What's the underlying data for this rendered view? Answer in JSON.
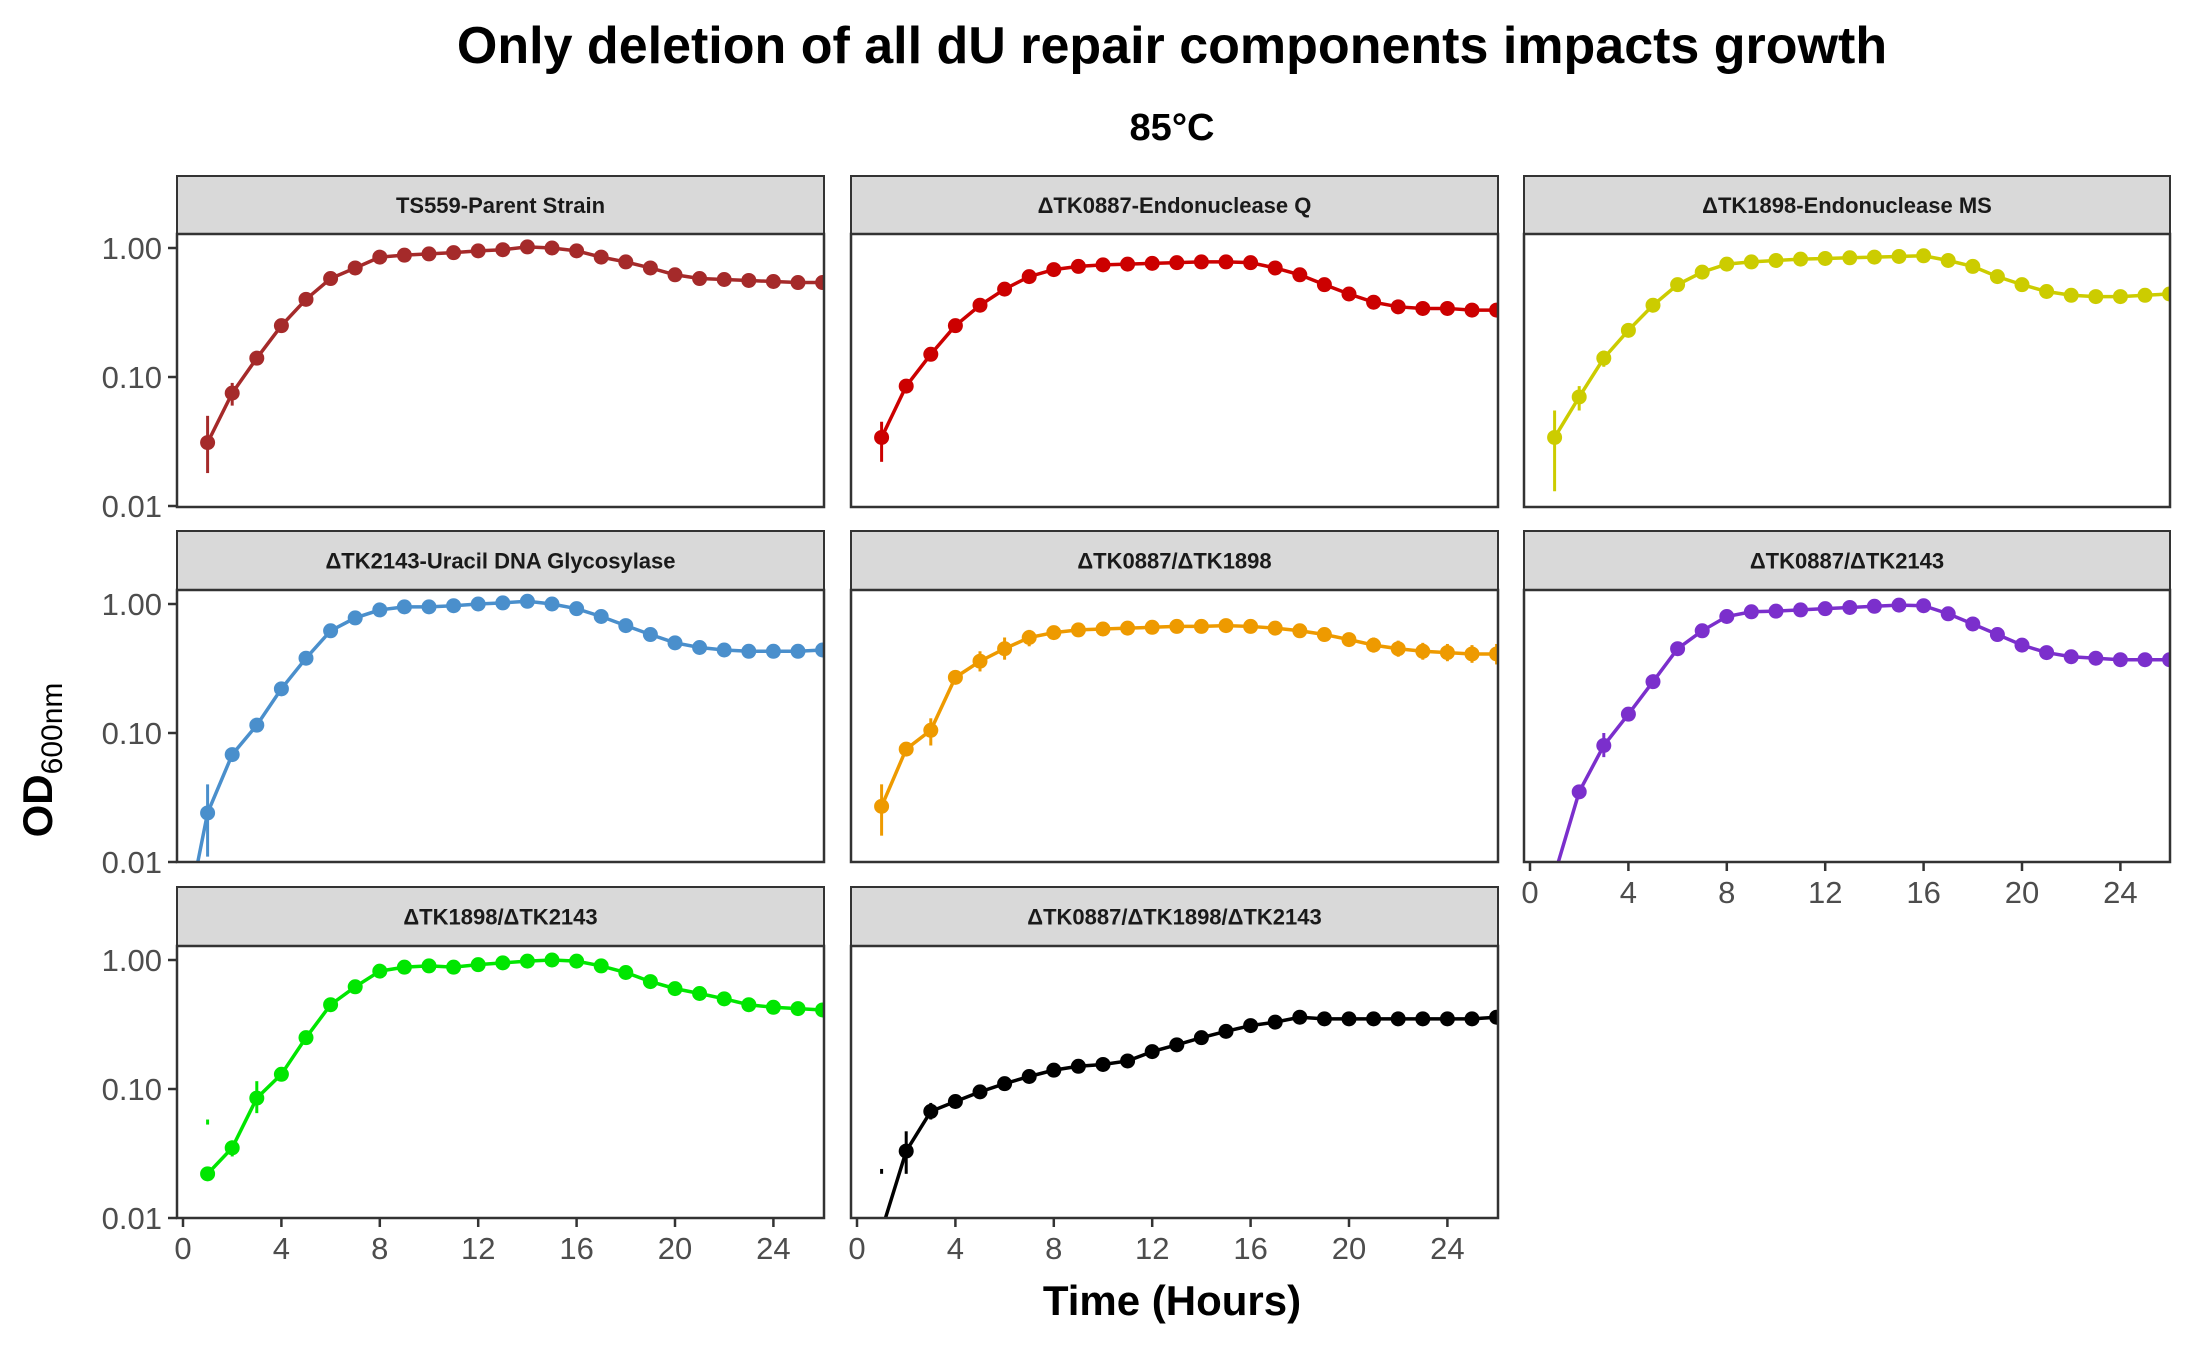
{
  "chart_data": {
    "type": "line",
    "title": "Only deletion of all dU repair components impacts growth",
    "subtitle": "85°C",
    "xlabel": "Time (Hours)",
    "ylabel_main": "OD",
    "ylabel_sub": "600nm",
    "xlim": [
      0,
      26.4
    ],
    "ylim": [
      0.01,
      3.5
    ],
    "y_scale": "log10",
    "x_ticks": [
      0,
      4,
      8,
      12,
      16,
      20,
      24
    ],
    "x_tick_labels": [
      "0",
      "4",
      "8",
      "12",
      "16",
      "20",
      "24"
    ],
    "y_ticks": [
      0.01,
      0.1,
      1.0
    ],
    "y_tick_labels": [
      "0.01",
      "0.10",
      "1.00"
    ],
    "grid": false,
    "legend": "none",
    "x": [
      1,
      2,
      3,
      4,
      5,
      6,
      7,
      8,
      9,
      10,
      11,
      12,
      13,
      14,
      15,
      16,
      17,
      18,
      19,
      20,
      21,
      22,
      23,
      24,
      25,
      26
    ],
    "series": [
      {
        "name": "TS559-Parent Strain",
        "color": "#a52a2a",
        "values": [
          0.031,
          0.075,
          0.14,
          0.25,
          0.4,
          0.58,
          0.7,
          0.85,
          0.88,
          0.9,
          0.92,
          0.95,
          0.97,
          1.02,
          1.0,
          0.95,
          0.85,
          0.78,
          0.7,
          0.62,
          0.58,
          0.57,
          0.56,
          0.55,
          0.54,
          0.54
        ],
        "err_lo": [
          0.018,
          0.06,
          0,
          0,
          0,
          0,
          0,
          0,
          0,
          0,
          0,
          0,
          0,
          0,
          0,
          0,
          0,
          0,
          0,
          0,
          0,
          0,
          0,
          0,
          0,
          0
        ],
        "err_hi": [
          0.05,
          0.09,
          0,
          0,
          0,
          0,
          0,
          0,
          0,
          0,
          0,
          0,
          0,
          0,
          0,
          0,
          0,
          0,
          0,
          0,
          0,
          0,
          0,
          0,
          0,
          0
        ]
      },
      {
        "name": "ΔTK0887-Endonuclease Q",
        "color": "#cc0000",
        "values": [
          0.034,
          0.085,
          0.15,
          0.25,
          0.36,
          0.48,
          0.6,
          0.68,
          0.72,
          0.74,
          0.75,
          0.76,
          0.77,
          0.78,
          0.78,
          0.77,
          0.7,
          0.62,
          0.52,
          0.44,
          0.38,
          0.35,
          0.34,
          0.34,
          0.33,
          0.33
        ],
        "err_lo": [
          0.022,
          0,
          0,
          0,
          0,
          0,
          0,
          0,
          0,
          0,
          0,
          0,
          0,
          0,
          0,
          0,
          0,
          0,
          0,
          0,
          0,
          0,
          0,
          0,
          0,
          0
        ],
        "err_hi": [
          0.045,
          0,
          0,
          0,
          0,
          0,
          0,
          0,
          0,
          0,
          0,
          0,
          0,
          0,
          0,
          0,
          0,
          0,
          0,
          0,
          0,
          0,
          0,
          0,
          0,
          0
        ]
      },
      {
        "name": "ΔTK1898-Endonuclease MS",
        "color": "#cccc00",
        "values": [
          0.034,
          0.07,
          0.14,
          0.23,
          0.36,
          0.52,
          0.65,
          0.75,
          0.78,
          0.8,
          0.82,
          0.83,
          0.84,
          0.85,
          0.86,
          0.87,
          0.8,
          0.72,
          0.6,
          0.52,
          0.46,
          0.43,
          0.42,
          0.42,
          0.43,
          0.44
        ],
        "err_lo": [
          0.013,
          0.055,
          0.12,
          0,
          0,
          0,
          0,
          0,
          0,
          0,
          0,
          0,
          0,
          0,
          0,
          0,
          0,
          0,
          0,
          0,
          0,
          0,
          0,
          0,
          0,
          0
        ],
        "err_hi": [
          0.055,
          0.085,
          0.16,
          0,
          0,
          0,
          0,
          0,
          0,
          0,
          0,
          0,
          0,
          0,
          0,
          0,
          0,
          0,
          0,
          0,
          0,
          0,
          0,
          0,
          0,
          0
        ]
      },
      {
        "name": "ΔTK2143-Uracil DNA Glycosylase",
        "color": "#4a8fcc",
        "values": [
          0.024,
          0.068,
          0.115,
          0.22,
          0.38,
          0.62,
          0.78,
          0.9,
          0.95,
          0.95,
          0.97,
          1.0,
          1.02,
          1.05,
          1.0,
          0.92,
          0.8,
          0.68,
          0.58,
          0.5,
          0.46,
          0.44,
          0.43,
          0.43,
          0.43,
          0.44
        ],
        "err_lo": [
          0.011,
          0,
          0,
          0,
          0,
          0,
          0,
          0,
          0,
          0,
          0,
          0,
          0,
          0,
          0,
          0,
          0,
          0,
          0,
          0,
          0,
          0,
          0,
          0,
          0,
          0
        ],
        "err_hi": [
          0.04,
          0,
          0,
          0,
          0,
          0,
          0,
          0,
          0,
          0,
          0,
          0,
          0,
          0,
          0,
          0,
          0,
          0,
          0,
          0,
          0,
          0,
          0,
          0,
          0,
          0
        ],
        "extra_line_start": [
          0.5,
          0.008
        ]
      },
      {
        "name": "ΔTK0887/ΔTK1898",
        "color": "#ee9a00",
        "values": [
          0.027,
          0.075,
          0.105,
          0.27,
          0.36,
          0.45,
          0.55,
          0.6,
          0.63,
          0.64,
          0.65,
          0.66,
          0.67,
          0.67,
          0.68,
          0.67,
          0.65,
          0.62,
          0.58,
          0.53,
          0.48,
          0.45,
          0.43,
          0.42,
          0.41,
          0.41
        ],
        "err_lo": [
          0.016,
          0,
          0.08,
          0,
          0.3,
          0.37,
          0.47,
          0,
          0,
          0,
          0,
          0,
          0,
          0,
          0,
          0,
          0,
          0,
          0,
          0,
          0.42,
          0.39,
          0.37,
          0.36,
          0.35,
          0.34
        ],
        "err_hi": [
          0.04,
          0,
          0.13,
          0,
          0.43,
          0.55,
          0.63,
          0,
          0,
          0,
          0,
          0,
          0,
          0,
          0,
          0,
          0,
          0,
          0,
          0,
          0.55,
          0.52,
          0.5,
          0.49,
          0.48,
          0.49
        ]
      },
      {
        "name": "ΔTK0887/ΔTK2143",
        "color": "#7b2fcc",
        "values": [
          0.008,
          0.035,
          0.08,
          0.14,
          0.25,
          0.45,
          0.62,
          0.8,
          0.87,
          0.88,
          0.9,
          0.92,
          0.94,
          0.96,
          0.98,
          0.97,
          0.84,
          0.7,
          0.58,
          0.48,
          0.42,
          0.39,
          0.38,
          0.37,
          0.37,
          0.37
        ],
        "err_lo": [
          0,
          0,
          0.065,
          0,
          0,
          0,
          0,
          0,
          0,
          0,
          0,
          0,
          0,
          0,
          0,
          0,
          0,
          0,
          0,
          0,
          0,
          0,
          0,
          0,
          0,
          0
        ],
        "err_hi": [
          0,
          0,
          0.1,
          0,
          0,
          0,
          0,
          0,
          0,
          0,
          0,
          0,
          0,
          0,
          0,
          0,
          0,
          0,
          0,
          0,
          0,
          0,
          0,
          0,
          0,
          0
        ],
        "hide_first_point": true
      },
      {
        "name": "ΔTK1898/ΔTK2143",
        "color": "#00e600",
        "values": [
          0.022,
          0.035,
          0.085,
          0.13,
          0.25,
          0.45,
          0.62,
          0.82,
          0.88,
          0.9,
          0.88,
          0.92,
          0.95,
          0.98,
          1.0,
          0.98,
          0.9,
          0.8,
          0.68,
          0.6,
          0.55,
          0.5,
          0.45,
          0.43,
          0.42,
          0.41
        ],
        "err_lo": [
          0,
          0.03,
          0.065,
          0,
          0,
          0,
          0,
          0,
          0,
          0,
          0,
          0,
          0,
          0,
          0,
          0,
          0,
          0,
          0,
          0,
          0,
          0,
          0,
          0,
          0,
          0
        ],
        "err_hi": [
          0,
          0.04,
          0.115,
          0,
          0,
          0,
          0,
          0,
          0,
          0,
          0,
          0,
          0,
          0,
          0,
          0,
          0,
          0,
          0,
          0,
          0,
          0,
          0,
          0,
          0,
          0
        ],
        "stray_errbar": [
          1,
          0.053,
          0.058
        ]
      },
      {
        "name": "ΔTK0887/ΔTK1898/ΔTK2143",
        "color": "#000000",
        "values": [
          0.008,
          0.033,
          0.067,
          0.08,
          0.095,
          0.11,
          0.125,
          0.14,
          0.15,
          0.155,
          0.165,
          0.195,
          0.22,
          0.25,
          0.28,
          0.31,
          0.33,
          0.36,
          0.35,
          0.35,
          0.35,
          0.35,
          0.35,
          0.35,
          0.35,
          0.36
        ],
        "err_lo": [
          0,
          0.022,
          0.058,
          0,
          0,
          0,
          0,
          0,
          0,
          0,
          0,
          0,
          0,
          0,
          0,
          0,
          0,
          0,
          0,
          0,
          0,
          0,
          0,
          0,
          0,
          0
        ],
        "err_hi": [
          0,
          0.047,
          0.078,
          0,
          0,
          0,
          0,
          0,
          0,
          0,
          0,
          0,
          0,
          0,
          0,
          0,
          0,
          0,
          0,
          0,
          0,
          0,
          0,
          0,
          0,
          0
        ],
        "hide_first_point": true,
        "stray_errbar": [
          1,
          0.022,
          0.024
        ]
      }
    ]
  }
}
